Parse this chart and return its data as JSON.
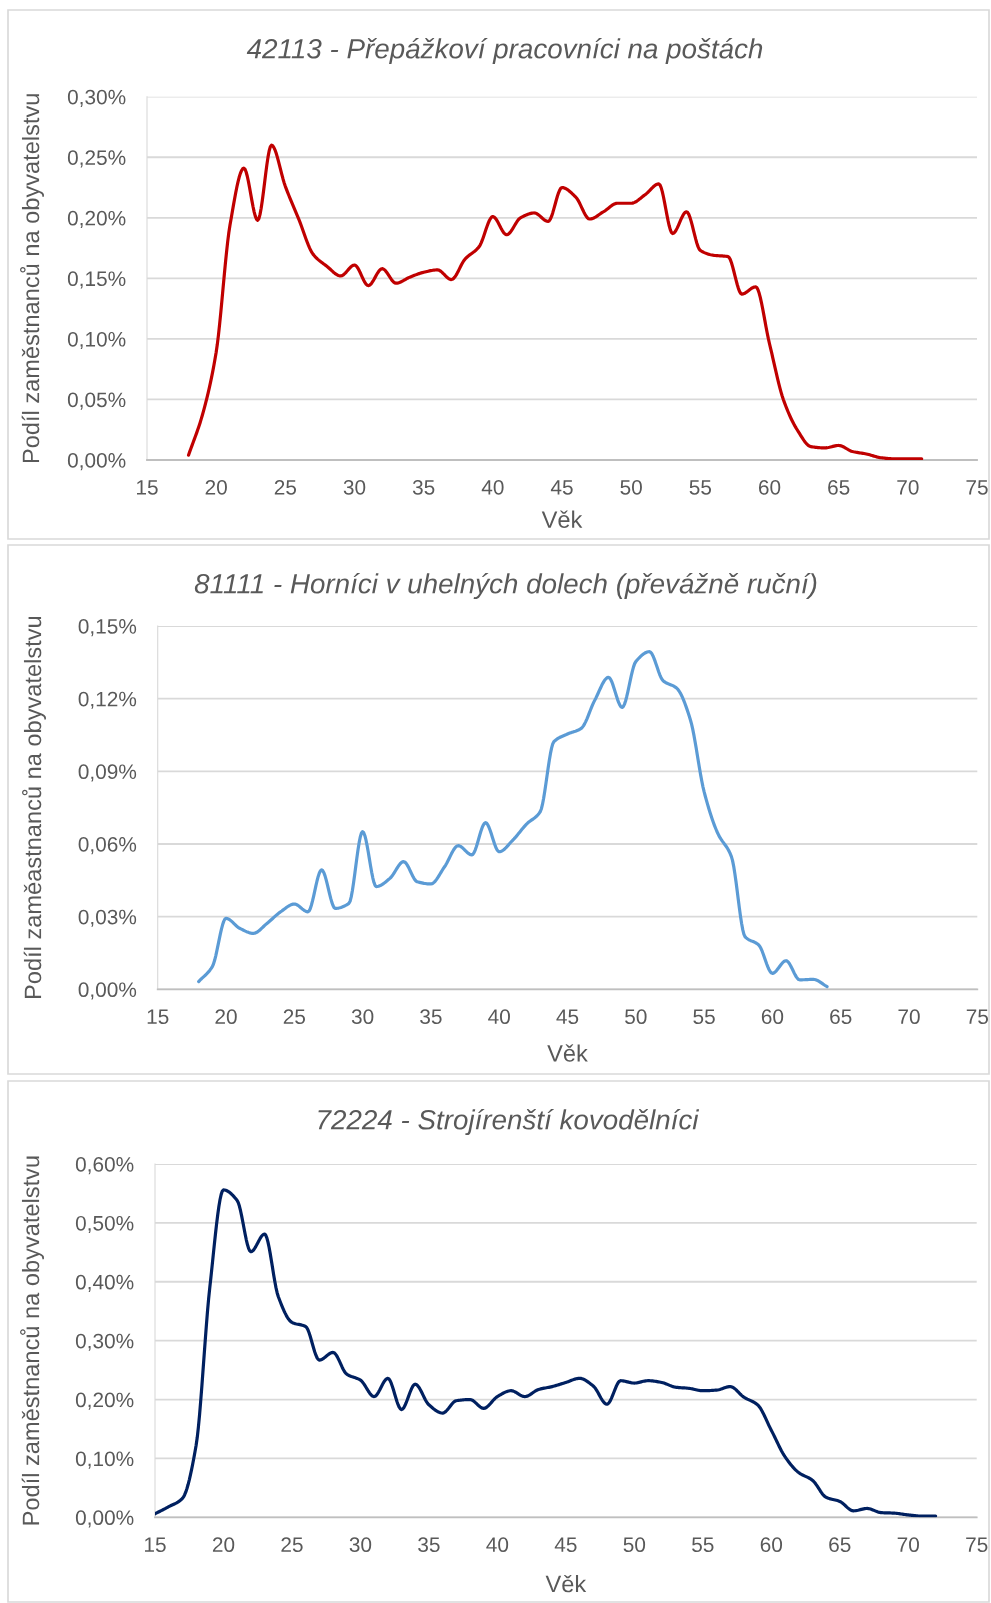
{
  "chart_data": [
    {
      "type": "line",
      "title": "42113 - Přepážkoví pracovníci na poštách",
      "xlabel": "Věk",
      "ylabel": "Podíl zaměstnanců na obyvatelstvu",
      "x": [
        18,
        19,
        20,
        21,
        22,
        23,
        24,
        25,
        26,
        27,
        28,
        29,
        30,
        31,
        32,
        33,
        34,
        35,
        36,
        37,
        38,
        39,
        40,
        41,
        42,
        43,
        44,
        45,
        46,
        47,
        48,
        49,
        50,
        51,
        52,
        53,
        54,
        55,
        56,
        57,
        58,
        59,
        60,
        61,
        62,
        63,
        64,
        65,
        66,
        67,
        68,
        69,
        70,
        71
      ],
      "series": [
        {
          "color": "#c00000",
          "values": [
            0.004,
            0.037,
            0.089,
            0.194,
            0.241,
            0.198,
            0.26,
            0.226,
            0.198,
            0.17,
            0.16,
            0.152,
            0.161,
            0.144,
            0.158,
            0.146,
            0.151,
            0.155,
            0.157,
            0.149,
            0.166,
            0.176,
            0.201,
            0.186,
            0.2,
            0.204,
            0.197,
            0.225,
            0.217,
            0.199,
            0.205,
            0.212,
            0.212,
            0.219,
            0.228,
            0.187,
            0.205,
            0.173,
            0.169,
            0.168,
            0.137,
            0.143,
            0.096,
            0.05,
            0.025,
            0.011,
            0.01,
            0.012,
            0.007,
            0.005,
            0.002,
            0.001,
            0.001,
            0.001
          ]
        }
      ],
      "xlim": [
        15,
        75
      ],
      "ylim": [
        0,
        0.3
      ],
      "xticks": [
        15,
        20,
        25,
        30,
        35,
        40,
        45,
        50,
        55,
        60,
        65,
        70,
        75
      ],
      "yticks": [
        {
          "value": 0,
          "label": "0,00%"
        },
        {
          "value": 0.05,
          "label": "0,05%"
        },
        {
          "value": 0.1,
          "label": "0,10%"
        },
        {
          "value": 0.15,
          "label": "0,15%"
        },
        {
          "value": 0.2,
          "label": "0,20%"
        },
        {
          "value": 0.25,
          "label": "0,25%"
        },
        {
          "value": 0.3,
          "label": "0,30%"
        }
      ],
      "grid": "y"
    },
    {
      "type": "line",
      "title": "81111 - Horníci v uhelných dolech (převážně ruční)",
      "xlabel": "Věk",
      "ylabel": "Podíl zaměastnanců na obyvatelstvu",
      "x": [
        18,
        19,
        20,
        21,
        22,
        23,
        24,
        25,
        26,
        27,
        28,
        29,
        30,
        31,
        32,
        33,
        34,
        35,
        36,
        37,
        38,
        39,
        40,
        41,
        42,
        43,
        44,
        45,
        46,
        47,
        48,
        49,
        50,
        51,
        52,
        53,
        54,
        55,
        56,
        57,
        58,
        59,
        60,
        61,
        62,
        63,
        64
      ],
      "series": [
        {
          "color": "#5b9bd5",
          "values": [
            0.0032,
            0.0094,
            0.0293,
            0.0252,
            0.0231,
            0.0272,
            0.032,
            0.0352,
            0.032,
            0.0493,
            0.0334,
            0.0355,
            0.0651,
            0.0424,
            0.0458,
            0.0527,
            0.0444,
            0.0435,
            0.0506,
            0.0593,
            0.0555,
            0.0688,
            0.0568,
            0.0616,
            0.0682,
            0.0733,
            0.1022,
            0.1054,
            0.1077,
            0.1194,
            0.1288,
            0.1164,
            0.1353,
            0.1394,
            0.1274,
            0.1243,
            0.1112,
            0.0816,
            0.0644,
            0.0548,
            0.0217,
            0.0183,
            0.0066,
            0.0118,
            0.0039,
            0.0041,
            0.0011
          ]
        }
      ],
      "xlim": [
        15,
        75
      ],
      "ylim": [
        0,
        0.15
      ],
      "xticks": [
        15,
        20,
        25,
        30,
        35,
        40,
        45,
        50,
        55,
        60,
        65,
        70,
        75
      ],
      "yticks": [
        {
          "value": 0,
          "label": "0,00%"
        },
        {
          "value": 0.03,
          "label": "0,03%"
        },
        {
          "value": 0.06,
          "label": "0,06%"
        },
        {
          "value": 0.09,
          "label": "0,09%"
        },
        {
          "value": 0.12,
          "label": "0,12%"
        },
        {
          "value": 0.15,
          "label": "0,15%"
        }
      ],
      "grid": "y"
    },
    {
      "type": "line",
      "title": "72224 - Strojírenští kovodělníci",
      "xlabel": "Věk",
      "ylabel": "Podíl zaměstnanců na obyvatelstvu",
      "x": [
        15,
        16,
        17,
        18,
        19,
        20,
        21,
        22,
        23,
        24,
        25,
        26,
        27,
        28,
        29,
        30,
        31,
        32,
        33,
        34,
        35,
        36,
        37,
        38,
        39,
        40,
        41,
        42,
        43,
        44,
        45,
        46,
        47,
        48,
        49,
        50,
        51,
        52,
        53,
        54,
        55,
        56,
        57,
        58,
        59,
        60,
        61,
        62,
        63,
        64,
        65,
        66,
        67,
        68,
        69,
        70,
        71,
        72
      ],
      "series": [
        {
          "color": "#002060",
          "values": [
            0.006,
            0.018,
            0.032,
            0.122,
            0.39,
            0.556,
            0.538,
            0.451,
            0.481,
            0.375,
            0.331,
            0.324,
            0.267,
            0.28,
            0.243,
            0.233,
            0.205,
            0.236,
            0.183,
            0.226,
            0.191,
            0.177,
            0.198,
            0.2,
            0.185,
            0.205,
            0.215,
            0.205,
            0.217,
            0.222,
            0.229,
            0.236,
            0.223,
            0.192,
            0.232,
            0.228,
            0.232,
            0.229,
            0.221,
            0.219,
            0.215,
            0.216,
            0.222,
            0.204,
            0.191,
            0.148,
            0.103,
            0.076,
            0.063,
            0.034,
            0.027,
            0.011,
            0.015,
            0.008,
            0.007,
            0.004,
            0.002,
            0.002
          ]
        }
      ],
      "xlim": [
        15,
        75
      ],
      "ylim": [
        0,
        0.6
      ],
      "xticks": [
        15,
        20,
        25,
        30,
        35,
        40,
        45,
        50,
        55,
        60,
        65,
        70,
        75
      ],
      "yticks": [
        {
          "value": 0,
          "label": "0,00%"
        },
        {
          "value": 0.1,
          "label": "0,10%"
        },
        {
          "value": 0.2,
          "label": "0,20%"
        },
        {
          "value": 0.3,
          "label": "0,30%"
        },
        {
          "value": 0.4,
          "label": "0,40%"
        },
        {
          "value": 0.5,
          "label": "0,50%"
        },
        {
          "value": 0.6,
          "label": "0,60%"
        }
      ],
      "grid": "y"
    }
  ]
}
